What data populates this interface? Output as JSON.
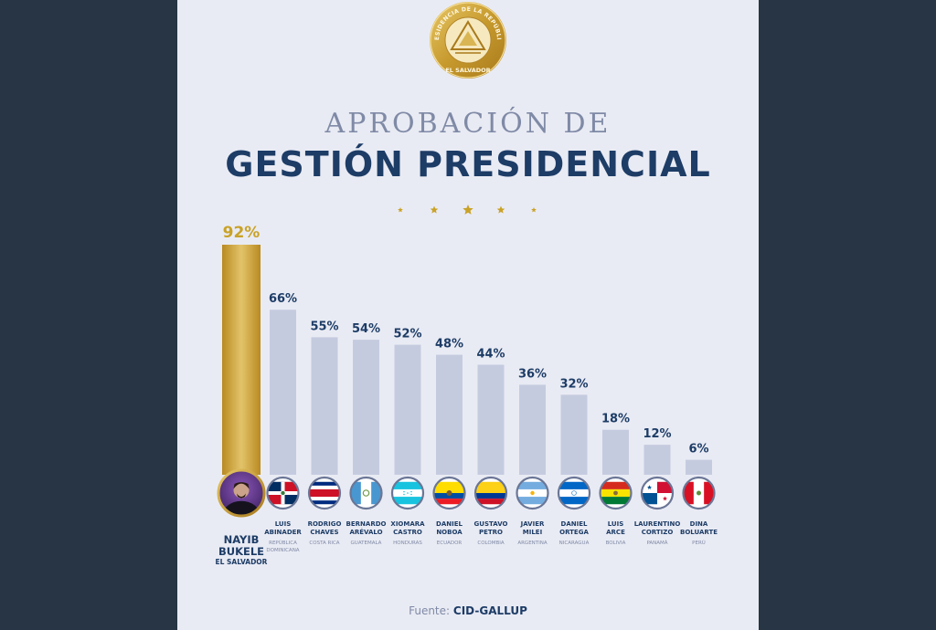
{
  "header": {
    "seal_text": "PRESIDENCIA DE LA REPÚBLICA",
    "seal_bottom_text": "EL SALVADOR",
    "title_line1": "APROBACIÓN DE",
    "title_line2": "GESTIÓN PRESIDENCIAL"
  },
  "footer": {
    "source_label": "Fuente:",
    "source_value": "CID-GALLUP"
  },
  "colors": {
    "highlight": "#c9a227",
    "bar": "#c5cbdf",
    "title_dark": "#1d3c66",
    "title_light": "#7f8aa6",
    "background": "#e9ebf4",
    "frame": "#273544"
  },
  "chart_data": {
    "type": "bar",
    "ylim": [
      0,
      100
    ],
    "highlight_index": 0,
    "bars": [
      {
        "value": 92,
        "label": "92%",
        "name": [
          "NAYIB",
          "BUKELE"
        ],
        "country": "EL SALVADOR",
        "flag": "el-salvador"
      },
      {
        "value": 66,
        "label": "66%",
        "name": [
          "LUIS",
          "ABINADER"
        ],
        "country": [
          "REPÚBLICA",
          "DOMINICANA"
        ],
        "flag": "dominican-republic"
      },
      {
        "value": 55,
        "label": "55%",
        "name": [
          "RODRIGO",
          "CHAVES"
        ],
        "country": "COSTA RICA",
        "flag": "costa-rica"
      },
      {
        "value": 54,
        "label": "54%",
        "name": [
          "BERNARDO",
          "ARÉVALO"
        ],
        "country": "GUATEMALA",
        "flag": "guatemala"
      },
      {
        "value": 52,
        "label": "52%",
        "name": [
          "XIOMARA",
          "CASTRO"
        ],
        "country": "HONDURAS",
        "flag": "honduras"
      },
      {
        "value": 48,
        "label": "48%",
        "name": [
          "DANIEL",
          "NOBOA"
        ],
        "country": "ECUADOR",
        "flag": "ecuador"
      },
      {
        "value": 44,
        "label": "44%",
        "name": [
          "GUSTAVO",
          "PETRO"
        ],
        "country": "COLOMBIA",
        "flag": "colombia"
      },
      {
        "value": 36,
        "label": "36%",
        "name": [
          "JAVIER",
          "MILEI"
        ],
        "country": "ARGENTINA",
        "flag": "argentina"
      },
      {
        "value": 32,
        "label": "32%",
        "name": [
          "DANIEL",
          "ORTEGA"
        ],
        "country": "NICARAGUA",
        "flag": "nicaragua"
      },
      {
        "value": 18,
        "label": "18%",
        "name": [
          "LUIS",
          "ARCE"
        ],
        "country": "BOLIVIA",
        "flag": "bolivia"
      },
      {
        "value": 12,
        "label": "12%",
        "name": [
          "LAURENTINO",
          "CORTIZO"
        ],
        "country": "PANAMÁ",
        "flag": "panama"
      },
      {
        "value": 6,
        "label": "6%",
        "name": [
          "DINA",
          "BOLUARTE"
        ],
        "country": "PERÚ",
        "flag": "peru"
      }
    ]
  }
}
